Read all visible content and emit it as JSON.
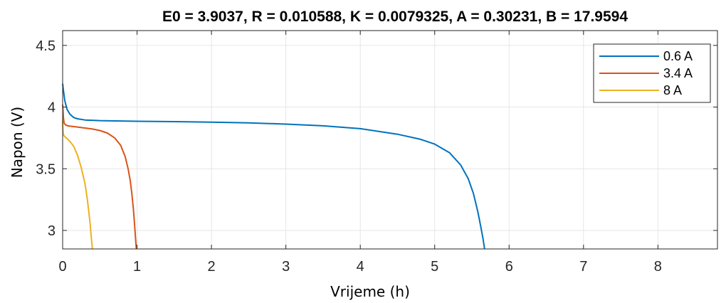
{
  "chart_data": {
    "type": "line",
    "title": "E0 = 3.9037, R = 0.010588, K = 0.0079325, A = 0.30231, B = 17.9594",
    "xlabel": "Vrijeme (h)",
    "ylabel": "Napon (V)",
    "xlim": [
      0,
      8.8
    ],
    "ylim": [
      2.85,
      4.62
    ],
    "grid": true,
    "legend_position": "top-right",
    "xticks": [
      0,
      1,
      2,
      3,
      4,
      5,
      6,
      7,
      8
    ],
    "yticks": [
      3,
      3.5,
      4,
      4.5
    ],
    "xtick_labels": [
      "0",
      "1",
      "2",
      "3",
      "4",
      "5",
      "6",
      "7",
      "8"
    ],
    "ytick_labels": [
      "3",
      "3.5",
      "4",
      "4.5"
    ],
    "series": [
      {
        "name": "0.6 A",
        "color": "#0072BD",
        "x": [
          0,
          0.01,
          0.03,
          0.06,
          0.1,
          0.15,
          0.2,
          0.3,
          0.5,
          1.0,
          1.5,
          2.0,
          2.5,
          3.0,
          3.5,
          4.0,
          4.5,
          4.8,
          5.0,
          5.2,
          5.35,
          5.45,
          5.52,
          5.58,
          5.62,
          5.65,
          5.67
        ],
        "y": [
          4.19,
          4.14,
          4.05,
          3.98,
          3.94,
          3.915,
          3.905,
          3.895,
          3.89,
          3.885,
          3.882,
          3.878,
          3.872,
          3.862,
          3.848,
          3.825,
          3.78,
          3.74,
          3.7,
          3.63,
          3.53,
          3.42,
          3.3,
          3.15,
          3.03,
          2.93,
          2.85
        ]
      },
      {
        "name": "3.4 A",
        "color": "#D95319",
        "x": [
          0,
          0.005,
          0.01,
          0.02,
          0.04,
          0.07,
          0.1,
          0.2,
          0.3,
          0.4,
          0.5,
          0.6,
          0.7,
          0.78,
          0.84,
          0.88,
          0.91,
          0.93,
          0.95,
          0.96,
          0.97,
          0.98,
          0.99
        ],
        "y": [
          4.02,
          3.98,
          3.92,
          3.87,
          3.855,
          3.848,
          3.845,
          3.838,
          3.83,
          3.822,
          3.81,
          3.79,
          3.75,
          3.69,
          3.6,
          3.5,
          3.4,
          3.3,
          3.18,
          3.1,
          3.02,
          2.93,
          2.85
        ]
      },
      {
        "name": "8 A",
        "color": "#EDB120",
        "x": [
          0,
          0.003,
          0.008,
          0.015,
          0.03,
          0.06,
          0.1,
          0.15,
          0.2,
          0.25,
          0.3,
          0.33,
          0.35,
          0.37,
          0.38,
          0.39,
          0.4
        ],
        "y": [
          3.9,
          3.84,
          3.79,
          3.77,
          3.76,
          3.745,
          3.72,
          3.68,
          3.61,
          3.51,
          3.38,
          3.26,
          3.16,
          3.05,
          2.98,
          2.91,
          2.85
        ]
      }
    ]
  }
}
